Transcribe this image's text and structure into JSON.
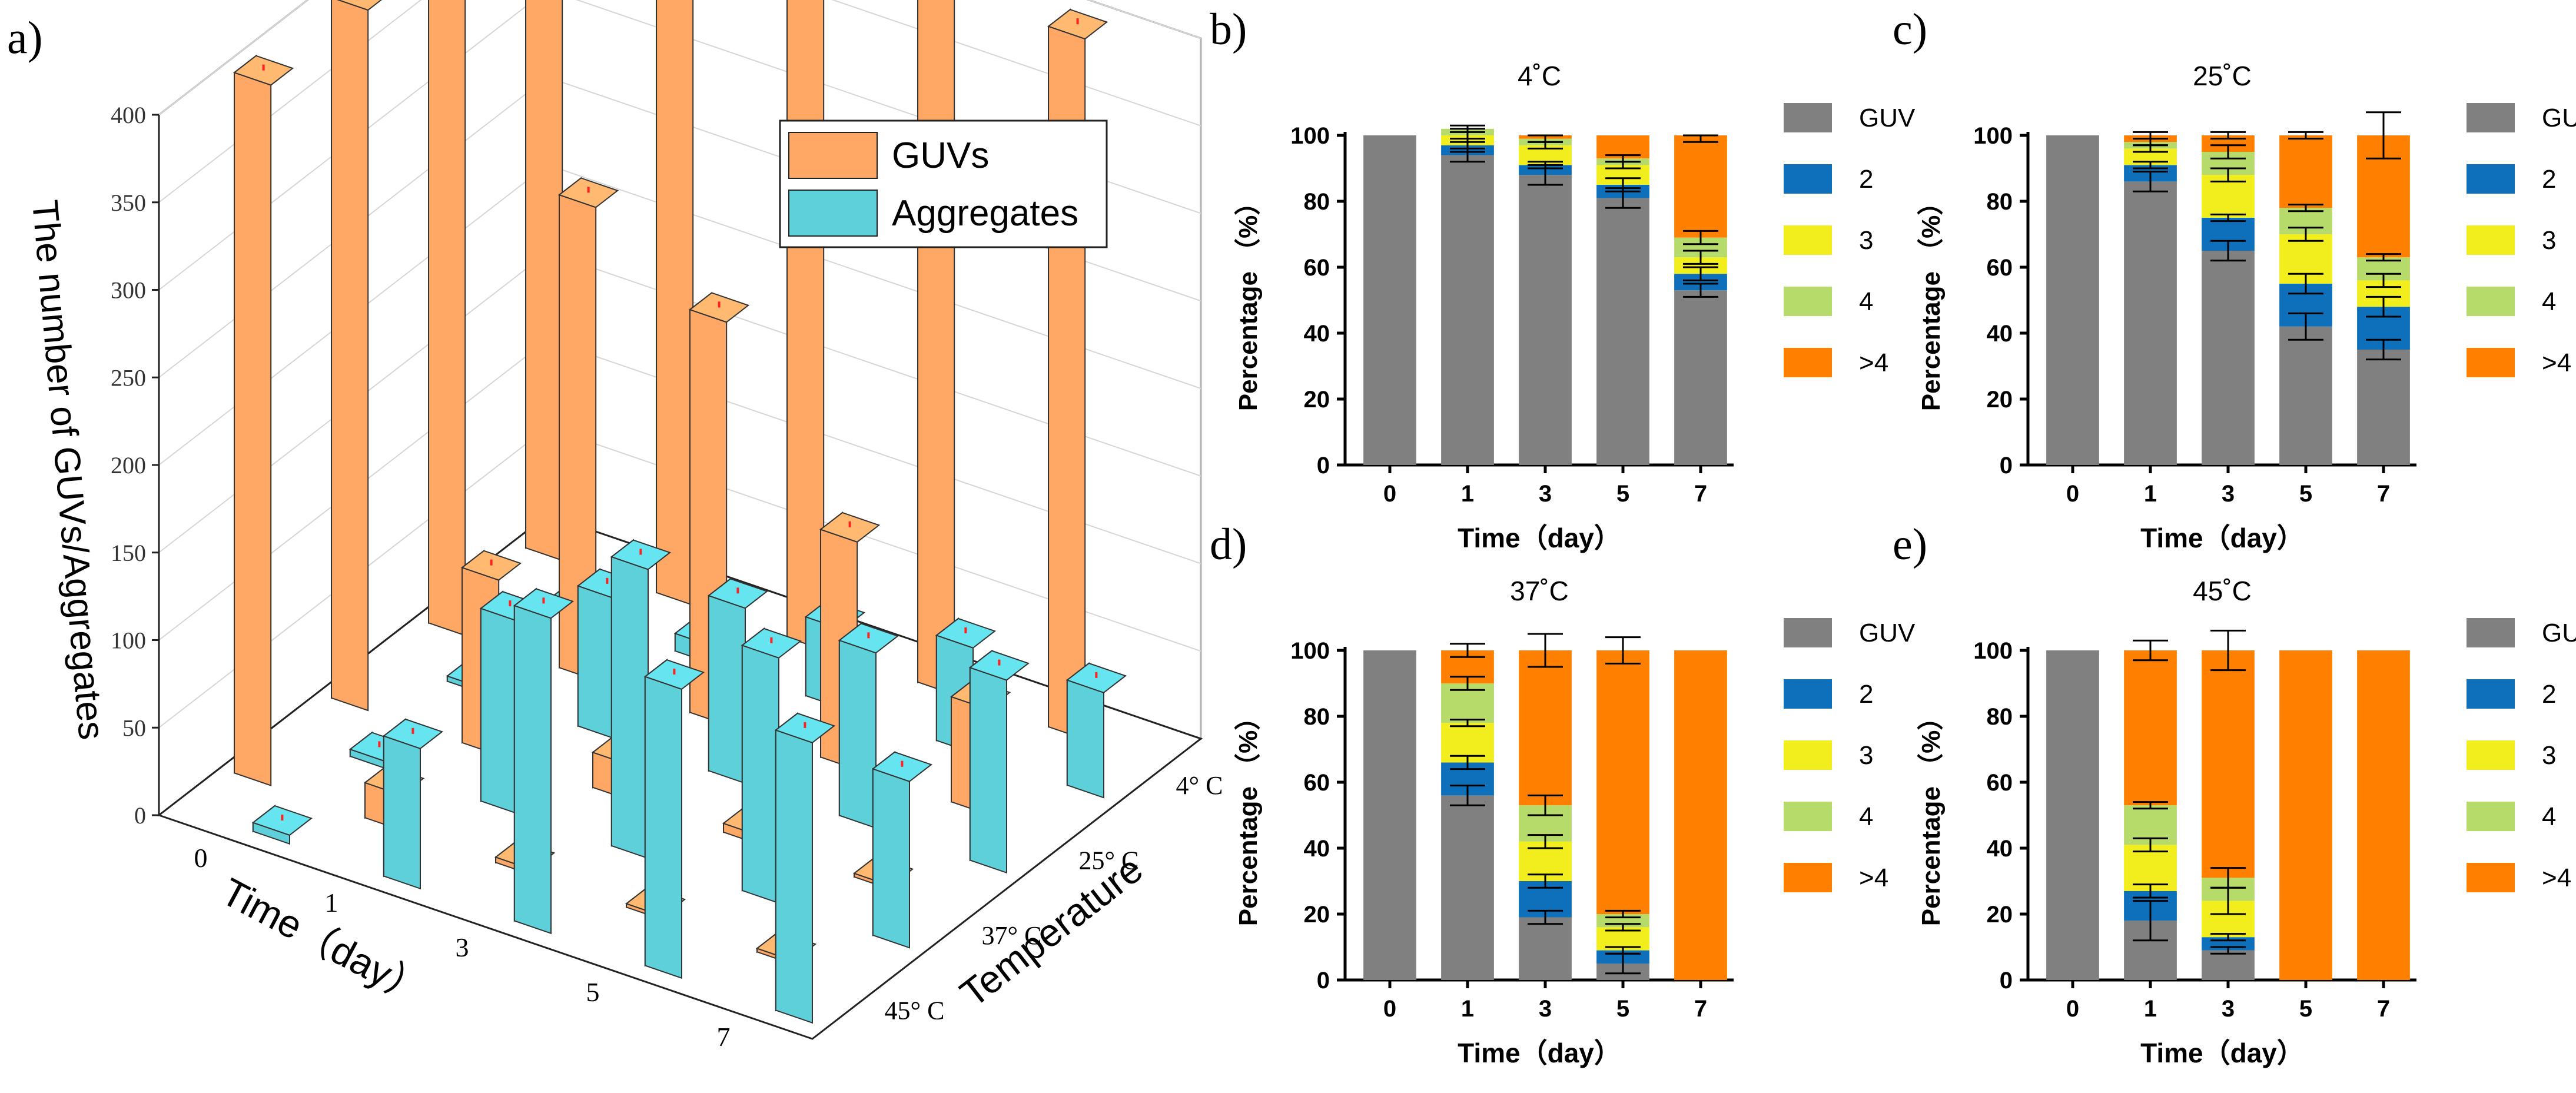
{
  "chart_data": [
    {
      "panel": "a)",
      "type": "bar3d",
      "ylabel": "The number of GUVs/Aggregates",
      "xlabel": "Time（day）",
      "zlabel": "Temperature",
      "time_ticks": [
        "0",
        "1",
        "3",
        "5",
        "7"
      ],
      "temperature_ticks": [
        "4° C",
        "25° C",
        "37° C",
        "45° C"
      ],
      "y_ticks": [
        "0",
        "50",
        "100",
        "150",
        "200",
        "250",
        "300",
        "350",
        "400"
      ],
      "ylim": [
        0,
        400
      ],
      "legend": [
        {
          "name": "GUVs",
          "color": "#FFA866"
        },
        {
          "name": "Aggregates",
          "color": "#5DD0DA"
        }
      ],
      "series": [
        {
          "name": "GUVs",
          "temperature": "4° C",
          "values": [
            400,
            400,
            400,
            400,
            400
          ]
        },
        {
          "name": "GUVs",
          "temperature": "25° C",
          "values": [
            400,
            270,
            230,
            130,
            60
          ]
        },
        {
          "name": "GUVs",
          "temperature": "37° C",
          "values": [
            400,
            100,
            20,
            5,
            2
          ]
        },
        {
          "name": "GUVs",
          "temperature": "45° C",
          "values": [
            400,
            20,
            3,
            2,
            2
          ]
        },
        {
          "name": "Aggregates",
          "temperature": "4° C",
          "values": [
            2,
            10,
            45,
            60,
            60
          ]
        },
        {
          "name": "Aggregates",
          "temperature": "25° C",
          "values": [
            3,
            80,
            100,
            100,
            110
          ]
        },
        {
          "name": "Aggregates",
          "temperature": "37° C",
          "values": [
            4,
            110,
            165,
            140,
            95
          ]
        },
        {
          "name": "Aggregates",
          "temperature": "45° C",
          "values": [
            5,
            80,
            180,
            165,
            160
          ]
        }
      ]
    },
    {
      "panel": "b)",
      "title": "4˚C",
      "type": "stacked-bar",
      "categories": [
        "0",
        "1",
        "3",
        "5",
        "7"
      ],
      "xlabel": "Time（day）",
      "ylabel": "Percentage （%）",
      "ylim": [
        0,
        100
      ],
      "y_ticks": [
        "0",
        "20",
        "40",
        "60",
        "80",
        "100"
      ],
      "series": [
        {
          "name": "GUV",
          "color": "#808080",
          "values": [
            100,
            94,
            88,
            81,
            53
          ]
        },
        {
          "name": "2",
          "color": "#0E6FBB",
          "values": [
            0,
            3,
            3,
            4,
            5
          ]
        },
        {
          "name": "3",
          "color": "#F2EE1E",
          "values": [
            0,
            3,
            6,
            6,
            5
          ]
        },
        {
          "name": "4",
          "color": "#B7DB6A",
          "values": [
            0,
            2,
            2,
            2,
            6
          ]
        },
        {
          "name": ">4",
          "color": "#FF8000",
          "values": [
            0,
            0,
            1,
            7,
            31
          ]
        }
      ],
      "error_bars": [
        {
          "category": "1",
          "center": 94,
          "err": 2
        },
        {
          "category": "1",
          "center": 97,
          "err": 2
        },
        {
          "category": "1",
          "center": 100,
          "err": 2
        },
        {
          "category": "1",
          "center": 102,
          "err": 1
        },
        {
          "category": "3",
          "center": 88,
          "err": 3
        },
        {
          "category": "3",
          "center": 91,
          "err": 1
        },
        {
          "category": "3",
          "center": 97,
          "err": 1
        },
        {
          "category": "3",
          "center": 99,
          "err": 1
        },
        {
          "category": "5",
          "center": 81,
          "err": 3
        },
        {
          "category": "5",
          "center": 85,
          "err": 2
        },
        {
          "category": "5",
          "center": 91,
          "err": 1
        },
        {
          "category": "5",
          "center": 93,
          "err": 1
        },
        {
          "category": "7",
          "center": 53,
          "err": 2
        },
        {
          "category": "7",
          "center": 58,
          "err": 2
        },
        {
          "category": "7",
          "center": 63,
          "err": 2
        },
        {
          "category": "7",
          "center": 69,
          "err": 2
        },
        {
          "category": "7",
          "center": 99,
          "err": 1
        }
      ]
    },
    {
      "panel": "c)",
      "title": "25˚C",
      "type": "stacked-bar",
      "categories": [
        "0",
        "1",
        "3",
        "5",
        "7"
      ],
      "xlabel": "Time（day）",
      "ylabel": "Percentage （%）",
      "ylim": [
        0,
        100
      ],
      "y_ticks": [
        "0",
        "20",
        "40",
        "60",
        "80",
        "100"
      ],
      "series": [
        {
          "name": "GUV",
          "color": "#808080",
          "values": [
            100,
            86,
            65,
            42,
            35
          ]
        },
        {
          "name": "2",
          "color": "#0E6FBB",
          "values": [
            0,
            5,
            10,
            13,
            13
          ]
        },
        {
          "name": "3",
          "color": "#F2EE1E",
          "values": [
            0,
            5,
            13,
            15,
            8
          ]
        },
        {
          "name": "4",
          "color": "#B7DB6A",
          "values": [
            0,
            2,
            7,
            8,
            7
          ]
        },
        {
          "name": ">4",
          "color": "#FF8000",
          "values": [
            0,
            2,
            5,
            22,
            37
          ]
        }
      ],
      "error_bars": [
        {
          "category": "1",
          "center": 86,
          "err": 3
        },
        {
          "category": "1",
          "center": 91,
          "err": 1
        },
        {
          "category": "1",
          "center": 96,
          "err": 1
        },
        {
          "category": "1",
          "center": 98,
          "err": 1
        },
        {
          "category": "1",
          "center": 100,
          "err": 1
        },
        {
          "category": "3",
          "center": 65,
          "err": 3
        },
        {
          "category": "3",
          "center": 75,
          "err": 1
        },
        {
          "category": "3",
          "center": 88,
          "err": 2
        },
        {
          "category": "3",
          "center": 95,
          "err": 2
        },
        {
          "category": "3",
          "center": 100,
          "err": 1
        },
        {
          "category": "5",
          "center": 42,
          "err": 4
        },
        {
          "category": "5",
          "center": 55,
          "err": 3
        },
        {
          "category": "5",
          "center": 70,
          "err": 2
        },
        {
          "category": "5",
          "center": 78,
          "err": 1
        },
        {
          "category": "5",
          "center": 100,
          "err": 1
        },
        {
          "category": "7",
          "center": 35,
          "err": 3
        },
        {
          "category": "7",
          "center": 48,
          "err": 3
        },
        {
          "category": "7",
          "center": 56,
          "err": 2
        },
        {
          "category": "7",
          "center": 63,
          "err": 1
        },
        {
          "category": "7",
          "center": 100,
          "err": 7
        }
      ]
    },
    {
      "panel": "d)",
      "title": "37˚C",
      "type": "stacked-bar",
      "categories": [
        "0",
        "1",
        "3",
        "5",
        "7"
      ],
      "xlabel": "Time（day）",
      "ylabel": "Percentage （%）",
      "ylim": [
        0,
        100
      ],
      "y_ticks": [
        "0",
        "20",
        "40",
        "60",
        "80",
        "100"
      ],
      "series": [
        {
          "name": "GUV",
          "color": "#808080",
          "values": [
            100,
            56,
            19,
            5,
            0
          ]
        },
        {
          "name": "2",
          "color": "#0E6FBB",
          "values": [
            0,
            10,
            11,
            4,
            0
          ]
        },
        {
          "name": "3",
          "color": "#F2EE1E",
          "values": [
            0,
            12,
            12,
            7,
            0
          ]
        },
        {
          "name": "4",
          "color": "#B7DB6A",
          "values": [
            0,
            12,
            11,
            4,
            0
          ]
        },
        {
          "name": ">4",
          "color": "#FF8000",
          "values": [
            0,
            10,
            47,
            80,
            100
          ]
        }
      ],
      "error_bars": [
        {
          "category": "1",
          "center": 56,
          "err": 3
        },
        {
          "category": "1",
          "center": 66,
          "err": 2
        },
        {
          "category": "1",
          "center": 78,
          "err": 1
        },
        {
          "category": "1",
          "center": 90,
          "err": 2
        },
        {
          "category": "1",
          "center": 100,
          "err": 2
        },
        {
          "category": "3",
          "center": 19,
          "err": 2
        },
        {
          "category": "3",
          "center": 30,
          "err": 2
        },
        {
          "category": "3",
          "center": 42,
          "err": 2
        },
        {
          "category": "3",
          "center": 53,
          "err": 3
        },
        {
          "category": "3",
          "center": 100,
          "err": 5
        },
        {
          "category": "5",
          "center": 5,
          "err": 3
        },
        {
          "category": "5",
          "center": 9,
          "err": 1
        },
        {
          "category": "5",
          "center": 16,
          "err": 1
        },
        {
          "category": "5",
          "center": 20,
          "err": 1
        },
        {
          "category": "5",
          "center": 100,
          "err": 4
        }
      ]
    },
    {
      "panel": "e)",
      "title": "45˚C",
      "type": "stacked-bar",
      "categories": [
        "0",
        "1",
        "3",
        "5",
        "7"
      ],
      "xlabel": "Time（day）",
      "ylabel": "Percentage （%）",
      "ylim": [
        0,
        100
      ],
      "y_ticks": [
        "0",
        "20",
        "40",
        "60",
        "80",
        "100"
      ],
      "series": [
        {
          "name": "GUV",
          "color": "#808080",
          "values": [
            100,
            18,
            9,
            0,
            0
          ]
        },
        {
          "name": "2",
          "color": "#0E6FBB",
          "values": [
            0,
            9,
            4,
            0,
            0
          ]
        },
        {
          "name": "3",
          "color": "#F2EE1E",
          "values": [
            0,
            14,
            11,
            0,
            0
          ]
        },
        {
          "name": "4",
          "color": "#B7DB6A",
          "values": [
            0,
            12,
            7,
            0,
            0
          ]
        },
        {
          "name": ">4",
          "color": "#FF8000",
          "values": [
            0,
            47,
            69,
            100,
            100
          ]
        }
      ],
      "error_bars": [
        {
          "category": "1",
          "center": 18,
          "err": 6
        },
        {
          "category": "1",
          "center": 27,
          "err": 2
        },
        {
          "category": "1",
          "center": 41,
          "err": 2
        },
        {
          "category": "1",
          "center": 53,
          "err": 1
        },
        {
          "category": "1",
          "center": 100,
          "err": 3
        },
        {
          "category": "3",
          "center": 9,
          "err": 1
        },
        {
          "category": "3",
          "center": 13,
          "err": 1
        },
        {
          "category": "3",
          "center": 24,
          "err": 4
        },
        {
          "category": "3",
          "center": 31,
          "err": 3
        },
        {
          "category": "3",
          "center": 100,
          "err": 6
        }
      ]
    }
  ]
}
